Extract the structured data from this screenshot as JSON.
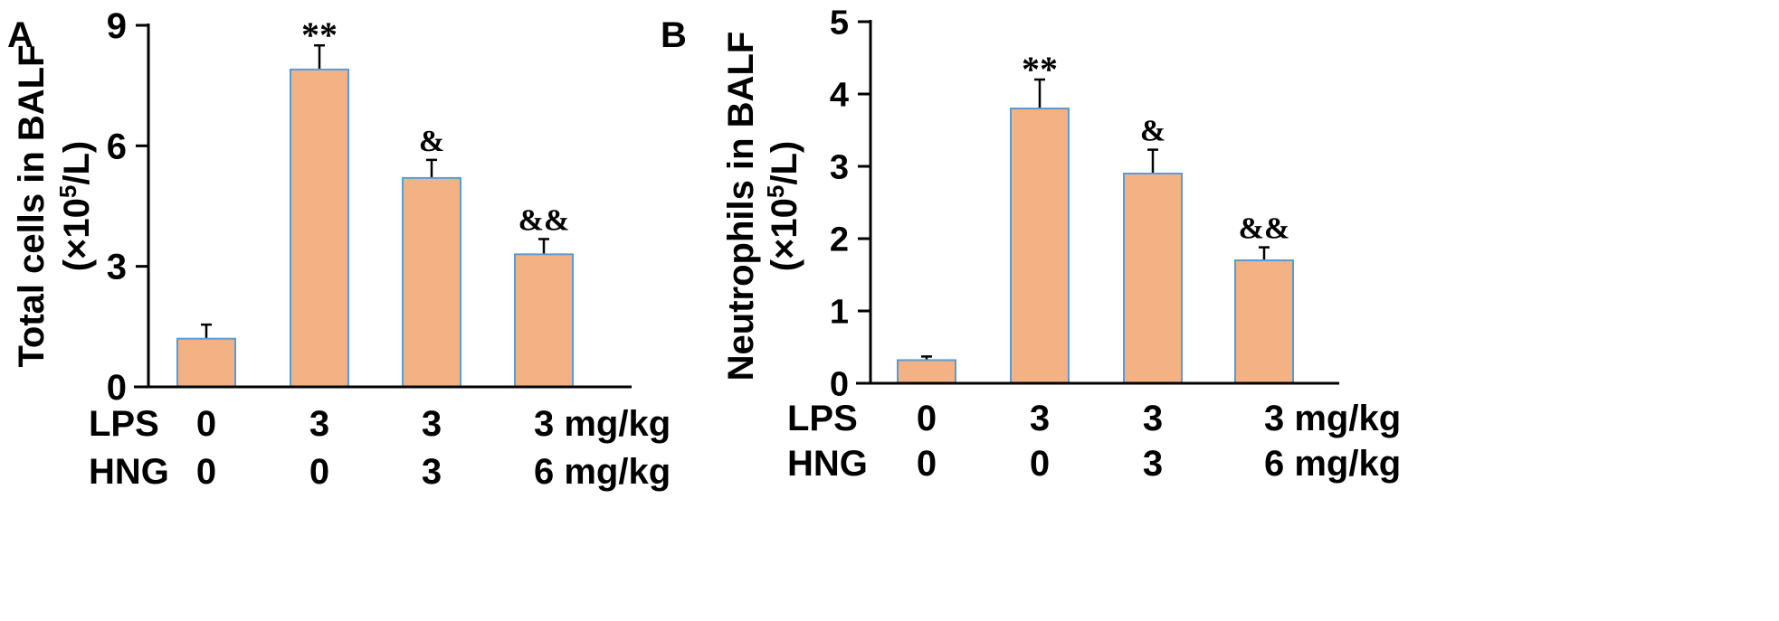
{
  "figure": {
    "bar_fill": "#F4B183",
    "bar_stroke": "#5B9BD5",
    "axis_color": "#000000"
  },
  "chart_data": [
    {
      "type": "bar",
      "panel_letter": "A",
      "ylabel_line1": "Total cells in BALF",
      "ylabel_line2_prefix": "(×10",
      "ylabel_line2_sup": "5",
      "ylabel_line2_suffix": "/L)",
      "ylim": [
        0,
        9
      ],
      "yticks": [
        0,
        3,
        6,
        9
      ],
      "ytick_labels": [
        "0",
        "3",
        "6",
        "9"
      ],
      "values": [
        1.2,
        7.9,
        5.2,
        3.3
      ],
      "errors": [
        0.35,
        0.6,
        0.45,
        0.38
      ],
      "significance": [
        "",
        "**",
        "&",
        "&&"
      ],
      "row_labels": [
        "LPS",
        "HNG"
      ],
      "lps_values": [
        "0",
        "3",
        "3",
        "3 mg/kg"
      ],
      "hng_values": [
        "0",
        "0",
        "3",
        "6 mg/kg"
      ]
    },
    {
      "type": "bar",
      "panel_letter": "B",
      "ylabel_line1": "Neutrophils in BALF",
      "ylabel_line2_prefix": "(×10",
      "ylabel_line2_sup": "5",
      "ylabel_line2_suffix": "/L)",
      "ylim": [
        0,
        5
      ],
      "yticks": [
        0,
        1,
        2,
        3,
        4,
        5
      ],
      "ytick_labels": [
        "0",
        "1",
        "2",
        "3",
        "4",
        "5"
      ],
      "values": [
        0.32,
        3.8,
        2.9,
        1.7
      ],
      "errors": [
        0.05,
        0.4,
        0.33,
        0.18
      ],
      "significance": [
        "",
        "**",
        "&",
        "&&"
      ],
      "row_labels": [
        "LPS",
        "HNG"
      ],
      "lps_values": [
        "0",
        "3",
        "3",
        "3 mg/kg"
      ],
      "hng_values": [
        "0",
        "0",
        "3",
        "6 mg/kg"
      ]
    }
  ]
}
